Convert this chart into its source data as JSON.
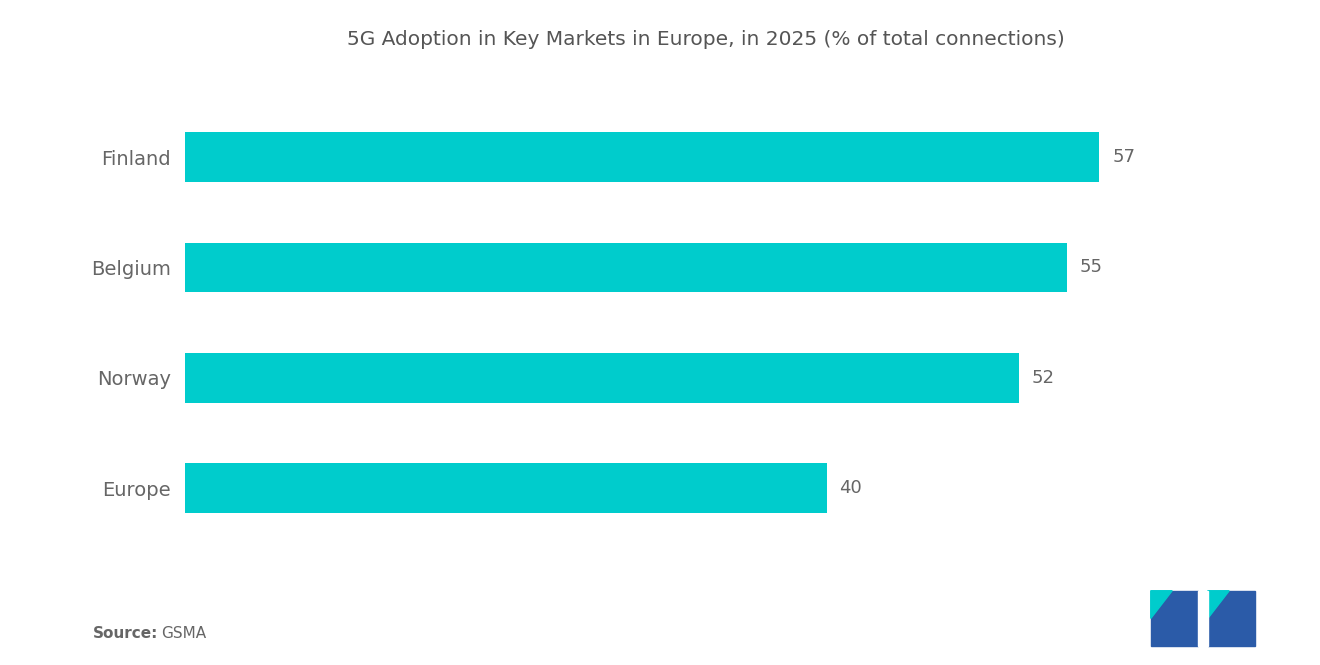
{
  "title": "5G Adoption in Key Markets in Europe, in 2025 (% of total connections)",
  "categories": [
    "Finland",
    "Belgium",
    "Norway",
    "Europe"
  ],
  "values": [
    57,
    55,
    52,
    40
  ],
  "bar_color": "#00CCCC",
  "value_color": "#666666",
  "label_color": "#666666",
  "title_color": "#555555",
  "background_color": "#ffffff",
  "source_bold": "Source:",
  "source_text": "GSMA",
  "xlim": [
    0,
    65
  ],
  "bar_height": 0.45,
  "title_fontsize": 14.5,
  "label_fontsize": 14,
  "value_fontsize": 13,
  "source_fontsize": 11
}
